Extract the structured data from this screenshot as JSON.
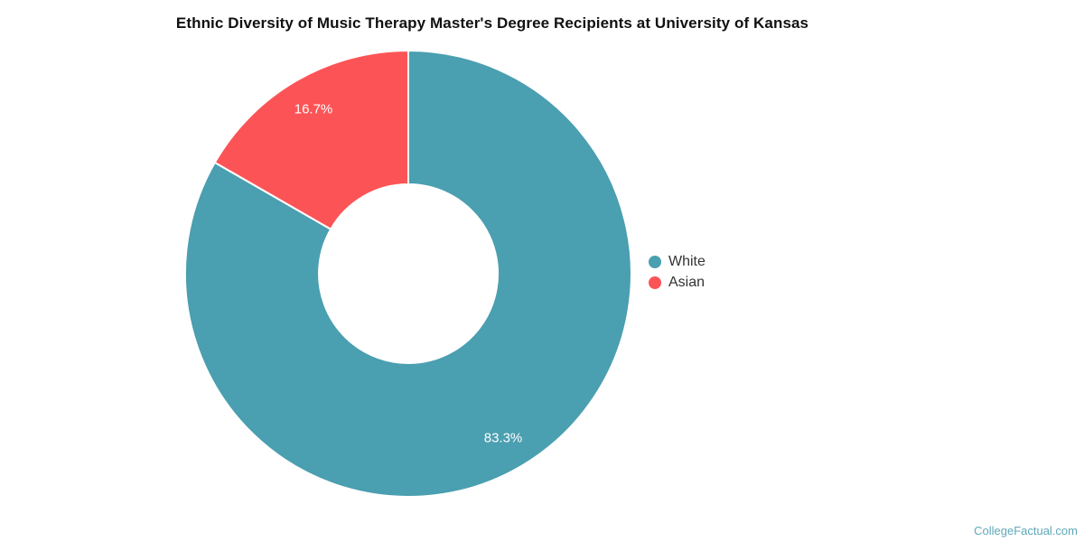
{
  "chart_data": {
    "type": "pie",
    "subtype": "donut",
    "title": "Ethnic Diversity of Music Therapy Master's Degree Recipients at University of Kansas",
    "categories": [
      "White",
      "Asian"
    ],
    "values": [
      83.3,
      16.7
    ],
    "unit": "%",
    "series": [
      {
        "name": "White",
        "value": 83.3,
        "label": "83.3%",
        "color": "#4A9FB0"
      },
      {
        "name": "Asian",
        "value": 16.7,
        "label": "16.7%",
        "color": "#FC5456"
      }
    ],
    "start_angle_deg": 0,
    "direction": "clockwise",
    "inner_radius_ratio": 0.4,
    "slice_border_color": "#ffffff",
    "legend_position": "right-middle",
    "legend_text_color": "#333333",
    "label_color": "#ffffff"
  },
  "watermark": {
    "text": "CollegeFactual.com",
    "color": "#5FA8B8"
  }
}
